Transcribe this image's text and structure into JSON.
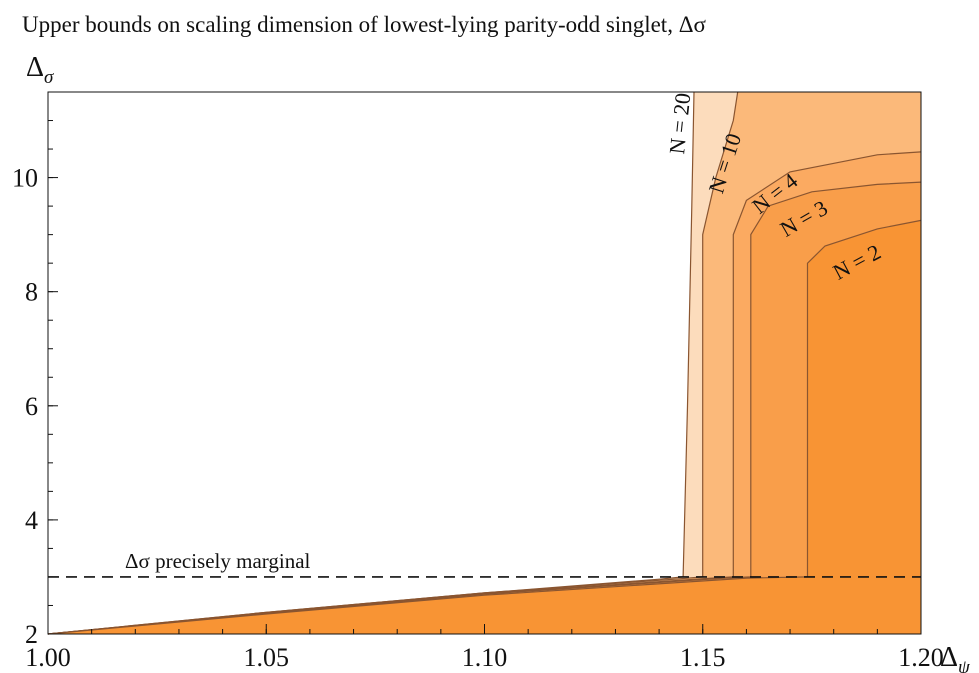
{
  "chart_data": {
    "type": "area",
    "title": "Upper bounds on scaling dimension of lowest-lying parity-odd singlet, Δσ",
    "xlabel": "Δψ",
    "ylabel": "Δσ",
    "xlim": [
      1.0,
      1.2
    ],
    "ylim": [
      2.0,
      11.5
    ],
    "x_ticks": [
      "1.00",
      "1.05",
      "1.10",
      "1.15",
      "1.20"
    ],
    "y_ticks": [
      "2",
      "4",
      "6",
      "8",
      "10"
    ],
    "annotation": "Δσ precisely marginal",
    "marginal_y": 3.0,
    "series": [
      {
        "name": "N = 20",
        "color": "#fcdcbc",
        "points": [
          [
            1.0,
            2.0
          ],
          [
            1.05,
            2.38
          ],
          [
            1.1,
            2.72
          ],
          [
            1.14,
            2.96
          ],
          [
            1.1455,
            3.0
          ],
          [
            1.1465,
            6.0
          ],
          [
            1.1475,
            9.5
          ],
          [
            1.148,
            11.5
          ]
        ]
      },
      {
        "name": "N = 10",
        "color": "#fbb97a",
        "points": [
          [
            1.0,
            2.0
          ],
          [
            1.05,
            2.38
          ],
          [
            1.1,
            2.72
          ],
          [
            1.145,
            2.97
          ],
          [
            1.15,
            3.0
          ],
          [
            1.15,
            9.0
          ],
          [
            1.153,
            10.0
          ],
          [
            1.157,
            11.0
          ],
          [
            1.158,
            11.5
          ]
        ]
      },
      {
        "name": "N = 4",
        "color": "#fbaa61",
        "points": [
          [
            1.0,
            2.0
          ],
          [
            1.05,
            2.37
          ],
          [
            1.1,
            2.71
          ],
          [
            1.15,
            2.97
          ],
          [
            1.157,
            3.0
          ],
          [
            1.157,
            9.0
          ],
          [
            1.16,
            9.6
          ],
          [
            1.17,
            10.1
          ],
          [
            1.19,
            10.4
          ],
          [
            1.2,
            10.45
          ]
        ]
      },
      {
        "name": "N = 3",
        "color": "#f99e4a",
        "points": [
          [
            1.0,
            2.0
          ],
          [
            1.05,
            2.36
          ],
          [
            1.1,
            2.7
          ],
          [
            1.155,
            2.98
          ],
          [
            1.161,
            3.0
          ],
          [
            1.161,
            9.0
          ],
          [
            1.165,
            9.5
          ],
          [
            1.175,
            9.75
          ],
          [
            1.19,
            9.88
          ],
          [
            1.2,
            9.92
          ]
        ]
      },
      {
        "name": "N = 2",
        "color": "#f89434",
        "points": [
          [
            1.0,
            2.0
          ],
          [
            1.05,
            2.35
          ],
          [
            1.1,
            2.68
          ],
          [
            1.16,
            2.98
          ],
          [
            1.174,
            3.0
          ],
          [
            1.174,
            8.5
          ],
          [
            1.178,
            8.8
          ],
          [
            1.19,
            9.1
          ],
          [
            1.2,
            9.25
          ]
        ]
      }
    ]
  }
}
